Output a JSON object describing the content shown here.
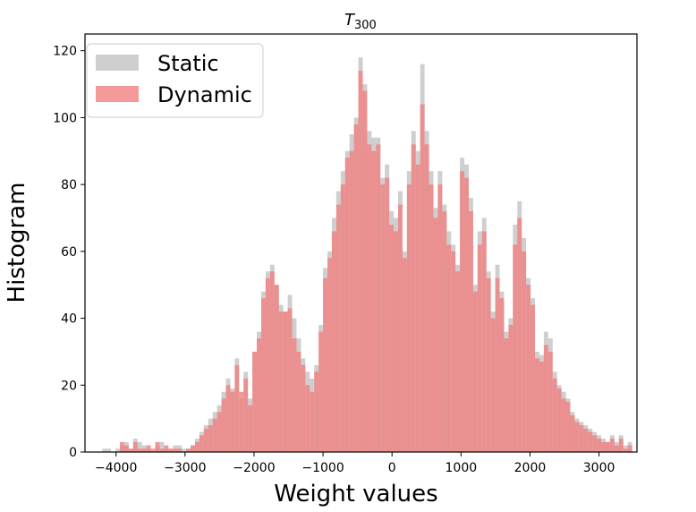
{
  "chart_data": {
    "type": "bar",
    "title_main": "T",
    "title_sub": "300",
    "xlabel": "Weight values",
    "ylabel": "Histogram",
    "xlim": [
      -4450,
      3550
    ],
    "ylim": [
      0,
      125
    ],
    "xticks": [
      -4000,
      -3000,
      -2000,
      -1000,
      0,
      1000,
      2000,
      3000
    ],
    "xtick_labels": [
      "−4000",
      "−3000",
      "−2000",
      "−1000",
      "0",
      "1000",
      "2000",
      "3000"
    ],
    "yticks": [
      0,
      20,
      40,
      60,
      80,
      100,
      120
    ],
    "ytick_labels": [
      "0",
      "20",
      "40",
      "60",
      "80",
      "100",
      "120"
    ],
    "legend_position": "top-left",
    "grid": false,
    "bin_start": -4200,
    "bin_width": 64,
    "series": [
      {
        "name": "Static",
        "color": "#bbbbbb",
        "opacity": 0.7,
        "values": [
          1,
          1,
          0,
          1,
          2,
          3,
          1,
          4,
          3,
          2,
          1,
          0,
          2,
          3,
          1,
          1,
          2,
          2,
          1,
          1,
          2,
          4,
          6,
          8,
          10,
          12,
          14,
          18,
          22,
          19,
          28,
          16,
          24,
          16,
          30,
          36,
          48,
          54,
          56,
          50,
          44,
          42,
          47,
          40,
          34,
          28,
          24,
          22,
          26,
          38,
          55,
          60,
          70,
          78,
          84,
          90,
          95,
          100,
          118,
          110,
          96,
          94,
          94,
          82,
          86,
          72,
          70,
          78,
          60,
          84,
          96,
          90,
          116,
          96,
          84,
          73,
          84,
          74,
          66,
          62,
          56,
          88,
          86,
          76,
          50,
          66,
          70,
          54,
          42,
          56,
          48,
          36,
          40,
          68,
          75,
          64,
          52,
          46,
          30,
          29,
          36,
          34,
          24,
          20,
          18,
          16,
          12,
          10,
          9,
          8,
          7,
          6,
          5,
          4,
          3,
          5,
          3,
          5,
          2,
          3
        ]
      },
      {
        "name": "Dynamic",
        "color": "#f08080",
        "opacity": 0.8,
        "values": [
          0,
          0,
          0,
          0,
          3,
          2,
          1,
          3,
          1,
          1,
          2,
          1,
          3,
          1,
          2,
          1,
          1,
          1,
          0,
          1,
          2,
          3,
          5,
          7,
          8,
          10,
          12,
          16,
          20,
          18,
          26,
          18,
          22,
          14,
          30,
          34,
          46,
          52,
          54,
          50,
          42,
          42,
          43,
          34,
          30,
          26,
          20,
          18,
          24,
          36,
          52,
          58,
          66,
          74,
          80,
          88,
          90,
          98,
          114,
          108,
          92,
          90,
          92,
          80,
          82,
          68,
          66,
          74,
          58,
          80,
          92,
          86,
          104,
          92,
          80,
          70,
          80,
          72,
          62,
          60,
          54,
          84,
          82,
          72,
          48,
          62,
          66,
          52,
          40,
          52,
          46,
          34,
          38,
          62,
          70,
          60,
          50,
          44,
          28,
          27,
          32,
          30,
          22,
          19,
          16,
          15,
          11,
          9,
          8,
          7,
          6,
          5,
          4,
          3,
          3,
          4,
          2,
          4,
          1,
          2
        ]
      }
    ]
  }
}
